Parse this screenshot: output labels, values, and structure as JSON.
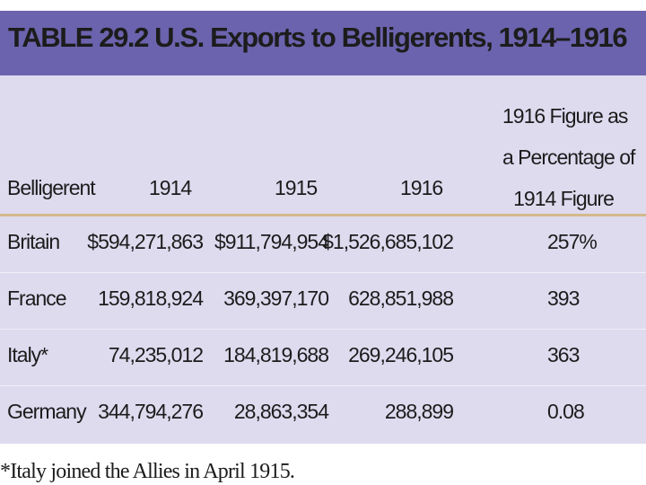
{
  "table": {
    "title": "TABLE 29.2  U.S. Exports to Belligerents, 1914–1916",
    "headers": {
      "belligerent": "Belligerent",
      "y1914": "1914",
      "y1915": "1915",
      "y1916": "1916",
      "pct_line1": "1916 Figure as",
      "pct_line2": "a Percentage of",
      "pct_line3": "1914 Figure"
    },
    "rows": [
      {
        "name": "Britain",
        "y1914": "$594,271,863",
        "y1915": "$911,794,954",
        "y1916": "$1,526,685,102",
        "pct": "257%"
      },
      {
        "name": "France",
        "y1914": "159,818,924",
        "y1915": "369,397,170",
        "y1916": "628,851,988",
        "pct": "393"
      },
      {
        "name": "Italy*",
        "y1914": "74,235,012",
        "y1915": "184,819,688",
        "y1916": "269,246,105",
        "pct": "363"
      },
      {
        "name": "Germany",
        "y1914": "344,794,276",
        "y1915": "28,863,354",
        "y1916": "288,899",
        "pct": "0.08"
      }
    ],
    "footnote": "*Italy joined the Allies in April 1915."
  },
  "colors": {
    "title_bar": "#6b63ad",
    "table_bg": "#dedbef",
    "header_rule": "#d4b98a"
  }
}
